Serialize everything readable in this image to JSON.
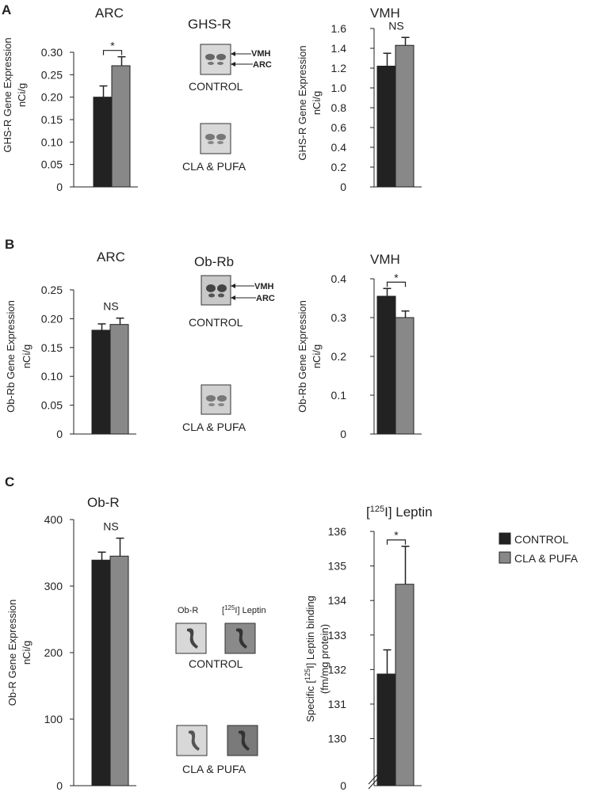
{
  "colors": {
    "control": "#222222",
    "treated": "#888888",
    "axis": "#222222",
    "blot_bg": "#d8d8d8"
  },
  "panels": {
    "A": {
      "letter": "A",
      "blot_title": "GHS-R",
      "blot_labels": {
        "vmh": "VMH",
        "arc": "ARC"
      },
      "captions": {
        "control": "CONTROL",
        "treated": "CLA  &  PUFA"
      }
    },
    "B": {
      "letter": "B",
      "blot_title": "Ob-Rb",
      "blot_labels": {
        "vmh": "VMH",
        "arc": "ARC"
      },
      "captions": {
        "control": "CONTROL",
        "treated": "CLA  &  PUFA"
      }
    },
    "C": {
      "letter": "C",
      "blot_headers": {
        "obr": "Ob-R",
        "leptin_sup": "125",
        "leptin_rest": "I] Leptin"
      },
      "captions": {
        "control": "CONTROL",
        "treated": "CLA  &  PUFA"
      }
    }
  },
  "legend": [
    {
      "label": "CONTROL",
      "color": "#222222"
    },
    {
      "label": "CLA  &  PUFA",
      "color": "#888888"
    }
  ],
  "chart_data": [
    {
      "type": "bar",
      "panel": "A",
      "title": "ARC",
      "ylabel_lines": [
        "GHS-R Gene Expression",
        "nCi/g"
      ],
      "ylim": [
        0,
        0.3
      ],
      "ticks": [
        "0",
        "0.05",
        "0.10",
        "0.15",
        "0.20",
        "0.25",
        "0.30"
      ],
      "series": [
        {
          "name": "CONTROL",
          "value": 0.2,
          "error": 0.025
        },
        {
          "name": "CLA & PUFA",
          "value": 0.27,
          "error": 0.02
        }
      ],
      "annotation": "*",
      "bracket": true
    },
    {
      "type": "bar",
      "panel": "A",
      "title": "VMH",
      "ylabel_lines": [
        "GHS-R Gene Expression",
        "nCi/g"
      ],
      "ylim": [
        0,
        1.6
      ],
      "ticks": [
        "0",
        "0.2",
        "0.4",
        "0.6",
        "0.8",
        "1.0",
        "1.2",
        "1.4",
        "1.6"
      ],
      "series": [
        {
          "name": "CONTROL",
          "value": 1.22,
          "error": 0.13
        },
        {
          "name": "CLA & PUFA",
          "value": 1.43,
          "error": 0.08
        }
      ],
      "annotation": "NS",
      "bracket": false
    },
    {
      "type": "bar",
      "panel": "B",
      "title": "ARC",
      "ylabel_lines": [
        "Ob-Rb  Gene Expression",
        "nCi/g"
      ],
      "ylim": [
        0,
        0.25
      ],
      "ticks": [
        "0",
        "0.05",
        "0.10",
        "0.15",
        "0.20",
        "0.25"
      ],
      "series": [
        {
          "name": "CONTROL",
          "value": 0.18,
          "error": 0.011
        },
        {
          "name": "CLA & PUFA",
          "value": 0.19,
          "error": 0.011
        }
      ],
      "annotation": "NS",
      "bracket": false
    },
    {
      "type": "bar",
      "panel": "B",
      "title": "VMH",
      "ylabel_lines": [
        "Ob-Rb  Gene Expression",
        "nCi/g"
      ],
      "ylim": [
        0,
        0.4
      ],
      "ticks": [
        "0",
        "0.1",
        "0.2",
        "0.3",
        "0.4"
      ],
      "series": [
        {
          "name": "CONTROL",
          "value": 0.355,
          "error": 0.02
        },
        {
          "name": "CLA & PUFA",
          "value": 0.3,
          "error": 0.017
        }
      ],
      "annotation": "*",
      "bracket": true
    },
    {
      "type": "bar",
      "panel": "C",
      "title": "Ob-R",
      "ylabel_lines": [
        "Ob-R  Gene Expression",
        "nCi/g"
      ],
      "ylim": [
        0,
        400
      ],
      "ticks": [
        "0",
        "100",
        "200",
        "300",
        "400"
      ],
      "series": [
        {
          "name": "CONTROL",
          "value": 339,
          "error": 12
        },
        {
          "name": "CLA & PUFA",
          "value": 345,
          "error": 27
        }
      ],
      "annotation": "NS",
      "bracket": false
    },
    {
      "type": "bar",
      "panel": "C",
      "title_parts": [
        "[",
        "125",
        "I] Leptin"
      ],
      "ylabel_parts": [
        "Specific [",
        "125",
        "I] Leptin binding"
      ],
      "ylabel_line2": "(fm/mg protein)",
      "ylim": [
        129.6,
        136
      ],
      "axis_break": true,
      "ticks": [
        "130",
        "131",
        "132",
        "133",
        "134",
        "135",
        "136"
      ],
      "zero_label": "0",
      "series": [
        {
          "name": "CONTROL",
          "value": 131.87,
          "error": 0.7
        },
        {
          "name": "CLA & PUFA",
          "value": 134.47,
          "error": 1.1
        }
      ],
      "annotation": "*",
      "bracket": true
    }
  ]
}
